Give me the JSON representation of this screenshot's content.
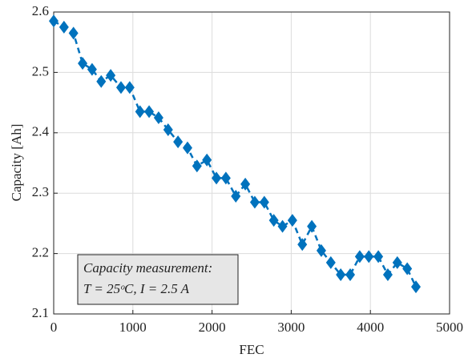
{
  "chart_data": {
    "type": "line",
    "x_label": "FEC",
    "y_label": "Capacity [Ah]",
    "annotation": [
      "Capacity measurement:",
      "T = 25ᵒC, I = 2.5 A"
    ],
    "x": [
      0,
      130,
      250,
      365,
      485,
      600,
      720,
      850,
      960,
      1090,
      1205,
      1325,
      1445,
      1570,
      1690,
      1810,
      1935,
      2055,
      2175,
      2300,
      2420,
      2540,
      2660,
      2780,
      2890,
      3015,
      3140,
      3260,
      3380,
      3500,
      3625,
      3745,
      3865,
      3980,
      4100,
      4220,
      4340,
      4465,
      4575
    ],
    "series": [
      {
        "name": "Capacity",
        "color": "#0072bd",
        "values": [
          2.585,
          2.575,
          2.565,
          2.515,
          2.505,
          2.485,
          2.495,
          2.475,
          2.475,
          2.435,
          2.435,
          2.425,
          2.405,
          2.385,
          2.375,
          2.345,
          2.355,
          2.325,
          2.325,
          2.295,
          2.315,
          2.285,
          2.285,
          2.255,
          2.245,
          2.255,
          2.215,
          2.245,
          2.205,
          2.185,
          2.165,
          2.165,
          2.195,
          2.195,
          2.195,
          2.165,
          2.185,
          2.175,
          2.145
        ]
      }
    ],
    "xlim": [
      0,
      5000
    ],
    "xticks": [
      0,
      1000,
      2000,
      3000,
      4000,
      5000
    ],
    "ylim": [
      2.1,
      2.6
    ],
    "yticks": [
      2.1,
      2.2,
      2.3,
      2.4,
      2.5,
      2.6
    ],
    "grid": true
  }
}
